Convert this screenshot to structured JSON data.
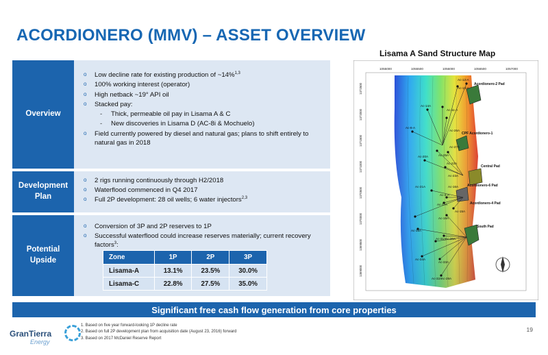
{
  "title": "ACORDIONERO (MMV) – ASSET OVERVIEW",
  "sections": {
    "overview": {
      "label": "Overview",
      "bullets": [
        {
          "text": "Low decline rate for existing production of ~14%",
          "sup": "1,3"
        },
        {
          "text": "100% working interest (operator)"
        },
        {
          "text": "High netback ~19° API oil"
        },
        {
          "text": "Stacked pay:"
        },
        {
          "text": "Field currently powered by diesel and natural gas; plans to shift entirely to natural gas in 2018"
        }
      ],
      "sub": [
        "Thick, permeable oil pay in Lisama A & C",
        "New discoveries in Lisama D (AC-8i & Mochuelo)"
      ]
    },
    "development": {
      "label": "Development Plan",
      "bullets": [
        {
          "text": "2 rigs running continuously through H2/2018"
        },
        {
          "text": "Waterflood commenced in Q4 2017"
        },
        {
          "text": "Full 2P development: 28 oil wells; 6 water injectors",
          "sup": "2,3"
        }
      ]
    },
    "upside": {
      "label": "Potential Upside",
      "bullets": [
        {
          "text": "Conversion of 3P and 2P reserves to 1P"
        },
        {
          "text": "Successful waterflood could increase reserves materially; current recovery factors",
          "sup": "3",
          "suffix": ":"
        }
      ]
    }
  },
  "table": {
    "headers": [
      "Zone",
      "1P",
      "2P",
      "3P"
    ],
    "rows": [
      [
        "Lisama-A",
        "13.1%",
        "23.5%",
        "30.0%"
      ],
      [
        "Lisama-C",
        "22.8%",
        "27.5%",
        "35.0%"
      ]
    ]
  },
  "map": {
    "title": "Lisama A Sand Structure Map",
    "x_ticks": [
      "1055000",
      "1055500",
      "1056000",
      "1056500",
      "1057000"
    ],
    "y_ticks": [
      "1372500",
      "1372000",
      "1371500",
      "1371000",
      "1370500",
      "1370000",
      "1369500",
      "1369000"
    ],
    "pads": [
      "Acordionero-2 Pad",
      "CPF Acordionero-1",
      "Central Pad",
      "Acordionero-6 Pad",
      "Acordionero-4 Pad",
      "South Pad"
    ],
    "wells": [
      "Ac-12-A",
      "Ac-13-A",
      "Ac-14A",
      "Ac-11-A",
      "Ac-8-A",
      "Ac-26A",
      "Ac-27A",
      "Ac-25A",
      "Ac-20A",
      "Ac-22A",
      "Ac-23A",
      "Ac-21A",
      "Ac-16A",
      "Ac-4-A",
      "Ac-17A",
      "Ac-15A",
      "Ac-18A",
      "Ac-19A",
      "Ac-31A",
      "Ac-30A",
      "Ac-34A",
      "Ac-33A",
      "Ac-32A",
      "Ac-29A"
    ]
  },
  "banner": "Significant free cash flow generation from core properties",
  "logo": {
    "name": "GranTierra",
    "sub": "Energy"
  },
  "footnotes": [
    "1. Based on five year forward-looking 1P decline rate",
    "2. Based on full 2P development plan from acquisition date (August 23, 2016) forward",
    "3. Based on 2017 McDaniel Reserve Report"
  ],
  "page_number": "19"
}
